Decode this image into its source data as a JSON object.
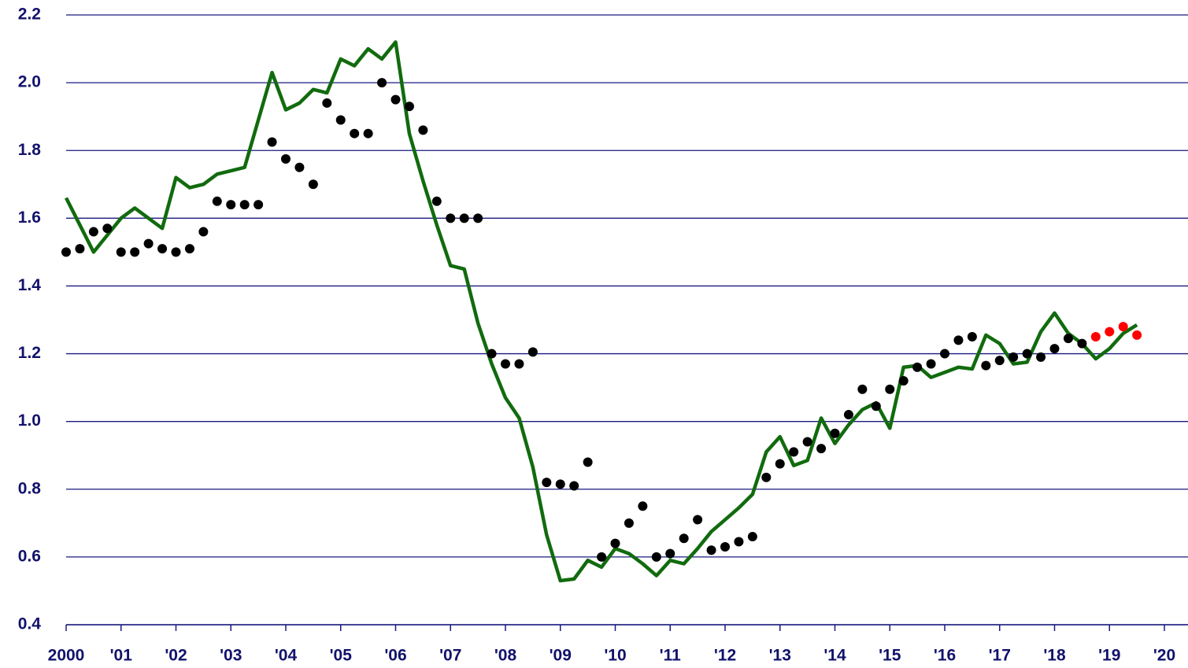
{
  "chart_data": {
    "type": "line",
    "xlim": [
      2000,
      2020.43
    ],
    "ylim": [
      0.4,
      2.2
    ],
    "xticks": [
      2000,
      {
        "value": 2001,
        "label": "'01"
      },
      {
        "value": 2002,
        "label": "'02"
      },
      {
        "value": 2003,
        "label": "'03"
      },
      {
        "value": 2004,
        "label": "'04"
      },
      {
        "value": 2005,
        "label": "'05"
      },
      {
        "value": 2006,
        "label": "'06"
      },
      {
        "value": 2007,
        "label": "'07"
      },
      {
        "value": 2008,
        "label": "'08"
      },
      {
        "value": 2009,
        "label": "'09"
      },
      {
        "value": 2010,
        "label": "'10"
      },
      {
        "value": 2011,
        "label": "'11"
      },
      {
        "value": 2012,
        "label": "'12"
      },
      {
        "value": 2013,
        "label": "'13"
      },
      {
        "value": 2014,
        "label": "'14"
      },
      {
        "value": 2015,
        "label": "'15"
      },
      {
        "value": 2016,
        "label": "'16"
      },
      {
        "value": 2017,
        "label": "'17"
      },
      {
        "value": 2018,
        "label": "'18"
      },
      {
        "value": 2019,
        "label": "'19"
      },
      {
        "value": 2020,
        "label": "'20"
      }
    ],
    "yticks": [
      0.4,
      0.6,
      0.8,
      {
        "value": 1,
        "label": "1.0"
      },
      1.2,
      1.4,
      1.6,
      1.8,
      {
        "value": 2,
        "label": "2.0"
      },
      2.2
    ],
    "grid": true,
    "grid_color": "#1a1a80",
    "axis_color": "#1a1a80",
    "series": [
      {
        "type": "line",
        "color": "#116b0e",
        "x": [
          2000,
          2000.25,
          2000.5,
          2000.75,
          2001,
          2001.25,
          2001.5,
          2001.75,
          2002,
          2002.25,
          2002.5,
          2002.75,
          2003,
          2003.25,
          2003.5,
          2003.75,
          2004,
          2004.25,
          2004.5,
          2004.75,
          2005,
          2005.25,
          2005.5,
          2005.75,
          2006,
          2006.25,
          2006.5,
          2006.75,
          2007,
          2007.25,
          2007.5,
          2007.75,
          2008,
          2008.25,
          2008.5,
          2008.75,
          2009,
          2009.25,
          2009.5,
          2009.75,
          2010,
          2010.25,
          2010.5,
          2010.75,
          2011,
          2011.25,
          2011.5,
          2011.75,
          2012,
          2012.25,
          2012.5,
          2012.75,
          2013,
          2013.25,
          2013.5,
          2013.75,
          2014,
          2014.25,
          2014.5,
          2014.75,
          2015,
          2015.25,
          2015.5,
          2015.75,
          2016,
          2016.25,
          2016.5,
          2016.75,
          2017,
          2017.25,
          2017.5,
          2017.75,
          2018,
          2018.25,
          2018.5,
          2018.75,
          2019,
          2019.25,
          2019.5
        ],
        "values": [
          1.66,
          1.58,
          1.5,
          1.55,
          1.6,
          1.63,
          1.6,
          1.57,
          1.72,
          1.69,
          1.7,
          1.73,
          1.74,
          1.75,
          1.89,
          2.03,
          1.92,
          1.94,
          1.98,
          1.97,
          2.07,
          2.05,
          2.1,
          2.07,
          2.12,
          1.85,
          1.71,
          1.58,
          1.46,
          1.45,
          1.29,
          1.17,
          1.07,
          1.01,
          0.865,
          0.665,
          0.53,
          0.535,
          0.59,
          0.57,
          0.625,
          0.61,
          0.58,
          0.545,
          0.59,
          0.58,
          0.625,
          0.675,
          0.71,
          0.745,
          0.785,
          0.91,
          0.955,
          0.87,
          0.885,
          1.01,
          0.935,
          0.99,
          1.035,
          1.055,
          0.98,
          1.16,
          1.165,
          1.13,
          1.145,
          1.16,
          1.155,
          1.255,
          1.23,
          1.17,
          1.175,
          1.265,
          1.32,
          1.26,
          1.23,
          1.185,
          1.215,
          1.26,
          1.285
        ]
      },
      {
        "type": "scatter",
        "color": "#000000",
        "x": [
          2000,
          2000.25,
          2000.5,
          2000.75,
          2001,
          2001.25,
          2001.5,
          2001.75,
          2002,
          2002.25,
          2002.5,
          2002.75,
          2003,
          2003.25,
          2003.5,
          2003.75,
          2004,
          2004.25,
          2004.5,
          2004.75,
          2005,
          2005.25,
          2005.5,
          2005.75,
          2006,
          2006.25,
          2006.5,
          2006.75,
          2007,
          2007.25,
          2007.5,
          2007.75,
          2008,
          2008.25,
          2008.5,
          2008.75,
          2009,
          2009.25,
          2009.5,
          2009.75,
          2010,
          2010.25,
          2010.5,
          2010.75,
          2011,
          2011.25,
          2011.5,
          2011.75,
          2012,
          2012.25,
          2012.5,
          2012.75,
          2013,
          2013.25,
          2013.5,
          2013.75,
          2014,
          2014.25,
          2014.5,
          2014.75,
          2015,
          2015.25,
          2015.5,
          2015.75,
          2016,
          2016.25,
          2016.5,
          2016.75,
          2017,
          2017.25,
          2017.5,
          2017.75,
          2018,
          2018.25,
          2018.5
        ],
        "values": [
          1.5,
          1.51,
          1.56,
          1.57,
          1.5,
          1.5,
          1.525,
          1.51,
          1.5,
          1.51,
          1.56,
          1.65,
          1.64,
          1.64,
          1.64,
          1.825,
          1.775,
          1.75,
          1.7,
          1.94,
          1.89,
          1.85,
          1.85,
          2.0,
          1.95,
          1.93,
          1.86,
          1.65,
          1.6,
          1.6,
          1.6,
          1.2,
          1.17,
          1.17,
          1.205,
          0.82,
          0.815,
          0.81,
          0.88,
          0.6,
          0.64,
          0.7,
          0.75,
          0.6,
          0.61,
          0.655,
          0.71,
          0.62,
          0.63,
          0.645,
          0.66,
          0.835,
          0.875,
          0.91,
          0.94,
          0.92,
          0.965,
          1.02,
          1.095,
          1.045,
          1.095,
          1.12,
          1.16,
          1.17,
          1.2,
          1.24,
          1.25,
          1.165,
          1.18,
          1.19,
          1.2,
          1.19,
          1.215,
          1.245,
          1.23
        ]
      },
      {
        "type": "scatter",
        "color": "#ff0000",
        "x": [
          2018.75,
          2019,
          2019.25,
          2019.5
        ],
        "values": [
          1.25,
          1.265,
          1.28,
          1.255
        ]
      }
    ]
  }
}
